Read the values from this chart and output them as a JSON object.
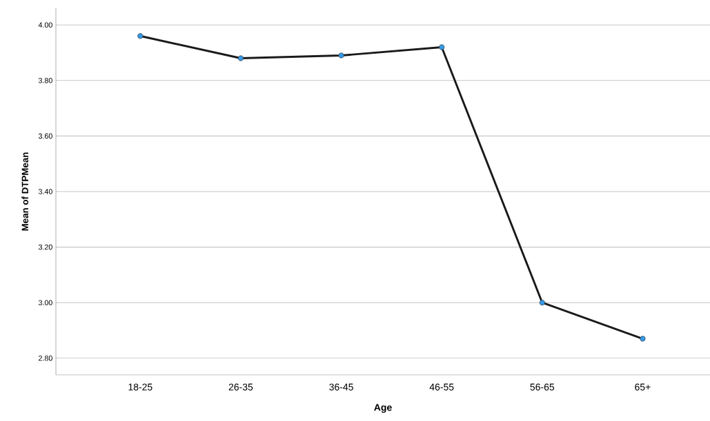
{
  "chart_data": {
    "type": "line",
    "xlabel": "Age",
    "ylabel": "Mean of DTPMean",
    "categories": [
      "18-25",
      "26-35",
      "36-45",
      "46-55",
      "56-65",
      "65+"
    ],
    "values": [
      3.96,
      3.88,
      3.89,
      3.92,
      3.0,
      2.87
    ],
    "color": "#1a1a1a",
    "ylim": [
      2.74,
      4.06
    ],
    "yticks": [
      {
        "value": 2.8,
        "label": "2.80"
      },
      {
        "value": 3.0,
        "label": "3.00"
      },
      {
        "value": 3.2,
        "label": "3.20"
      },
      {
        "value": 3.4,
        "label": "3.40"
      },
      {
        "value": 3.6,
        "label": "3.60"
      },
      {
        "value": 3.8,
        "label": "3.80"
      },
      {
        "value": 4.0,
        "label": "4.00"
      }
    ],
    "grid": "y",
    "marker": "circle",
    "line_style": "solid"
  }
}
